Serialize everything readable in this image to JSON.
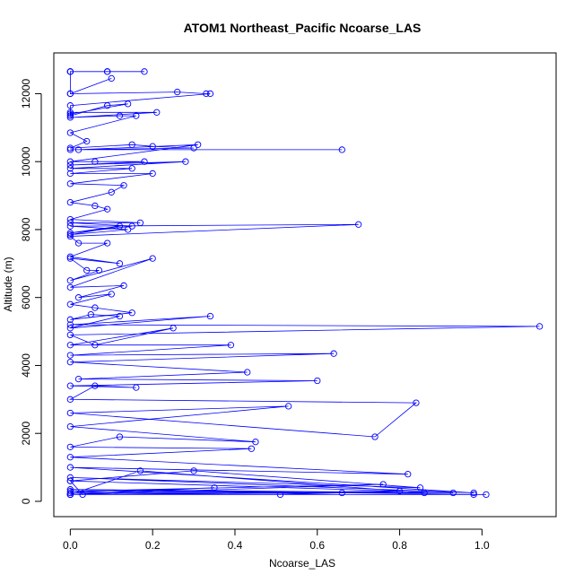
{
  "chart_data": {
    "type": "line",
    "title": "ATOM1 Northeast_Pacific Ncoarse_LAS",
    "xlabel": "Ncoarse_LAS",
    "ylabel": "Altitude (m)",
    "xlim": [
      -0.04,
      1.18
    ],
    "ylim": [
      -450,
      13200
    ],
    "x_ticks": [
      0.0,
      0.2,
      0.4,
      0.6,
      0.8,
      1.0
    ],
    "x_tick_labels": [
      "0.0",
      "0.2",
      "0.4",
      "0.6",
      "0.8",
      "1.0"
    ],
    "y_ticks": [
      0,
      2000,
      4000,
      6000,
      8000,
      10000,
      12000
    ],
    "y_tick_labels": [
      "0",
      "2000",
      "4000",
      "6000",
      "8000",
      "10000",
      "12000"
    ],
    "series_color": "#0000ff",
    "marker": "open-circle",
    "grid": false,
    "legend": "none",
    "series": [
      {
        "x": [
          0.0,
          0.0,
          0.09,
          0.09,
          0.18,
          0.0,
          0.0,
          0.1,
          0.0,
          0.26,
          0.33,
          0.34,
          0.0,
          0.0,
          0.09,
          0.14,
          0.0,
          0.0,
          0.21,
          0.0,
          0.12,
          0.16,
          0.0,
          0.04,
          0.0,
          0.15,
          0.2,
          0.3,
          0.0,
          0.66,
          0.02,
          0.31,
          0.0,
          0.06,
          0.18,
          0.0,
          0.28,
          0.0,
          0.15,
          0.0,
          0.2,
          0.0,
          0.13,
          0.1,
          0.0,
          0.06,
          0.09,
          0.0,
          0.17,
          0.0,
          0.15,
          0.0,
          0.12,
          0.0,
          0.14,
          0.0,
          0.7,
          0.0,
          0.02,
          0.09,
          0.0,
          0.12,
          0.0,
          0.04,
          0.07,
          0.0,
          0.2,
          0.0,
          0.13,
          0.02,
          0.1,
          0.0,
          0.06,
          0.15,
          0.0,
          0.05,
          0.12,
          0.0,
          0.34,
          0.0,
          1.14,
          0.0,
          0.06,
          0.25,
          0.0,
          0.39,
          0.0,
          0.64,
          0.0,
          0.43,
          0.02,
          0.6,
          0.0,
          0.16,
          0.06,
          0.0,
          0.84,
          0.74,
          0.0,
          0.53,
          0.0,
          0.45,
          0.12,
          0.0,
          0.44,
          0.0,
          0.82,
          0.0,
          0.98,
          0.0,
          0.85,
          0.3,
          0.0,
          0.93,
          0.0,
          1.01,
          0.0,
          0.8,
          0.51,
          0.0,
          0.66,
          0.0,
          0.35,
          0.0,
          0.76,
          0.0,
          0.86,
          0.17,
          0.0,
          0.98,
          0.0,
          0.03,
          0.0
        ],
        "y": [
          12650,
          12650,
          12650,
          12650,
          12650,
          12650,
          12000,
          12450,
          12000,
          12050,
          12000,
          12000,
          11650,
          11350,
          11650,
          11700,
          11400,
          11450,
          11450,
          11300,
          11350,
          11350,
          10850,
          10600,
          10400,
          10500,
          10450,
          10400,
          10350,
          10350,
          10350,
          10500,
          10000,
          10000,
          10000,
          9900,
          10000,
          9800,
          9800,
          9650,
          9650,
          9350,
          9300,
          9100,
          8800,
          8700,
          8600,
          8300,
          8200,
          8200,
          8100,
          7900,
          8100,
          7850,
          8000,
          8100,
          8150,
          7800,
          7600,
          7600,
          7200,
          7000,
          7150,
          6800,
          6800,
          6500,
          7150,
          6300,
          6350,
          6000,
          6100,
          5800,
          5700,
          5550,
          5350,
          5500,
          5450,
          5100,
          5450,
          5200,
          5150,
          4900,
          4600,
          5100,
          4600,
          4600,
          4300,
          4350,
          4100,
          3800,
          3600,
          3550,
          3400,
          3350,
          3400,
          3000,
          2900,
          1900,
          2600,
          2800,
          2200,
          1750,
          1900,
          1600,
          1550,
          1300,
          800,
          1000,
          250,
          700,
          400,
          900,
          600,
          250,
          350,
          200,
          200,
          300,
          200,
          200,
          250,
          250,
          400,
          200,
          500,
          300,
          250,
          900,
          200,
          200,
          200,
          200,
          600
        ]
      }
    ]
  }
}
